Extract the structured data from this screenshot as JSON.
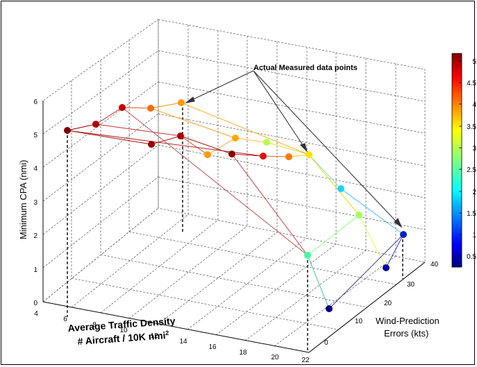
{
  "chart_data": {
    "type": "scatter3d",
    "annotation": "Actual Measured data points",
    "zlabel": "Minimum CPA (nmi)",
    "xlabel_line1": "Average Traffic Density",
    "xlabel_line2_prefix": "# Aircraft / 10K nmi",
    "xlabel_line2_sup": "2",
    "ylabel_line1": "Wind-Prediction",
    "ylabel_line2": "Errors (kts)",
    "x_ticks": [
      "4",
      "6",
      "8",
      "10",
      "12",
      "14",
      "16",
      "18",
      "20",
      "22"
    ],
    "y_ticks": [
      "0",
      "10",
      "20",
      "30",
      "40"
    ],
    "z_ticks": [
      "0",
      "1",
      "2",
      "3",
      "4",
      "5",
      "6"
    ],
    "colorbar_ticks": [
      "0.5",
      "1",
      "1.5",
      "2",
      "2.5",
      "3",
      "3.5",
      "4",
      "4.5",
      "5"
    ],
    "colormap": "jet",
    "grid": true
  }
}
